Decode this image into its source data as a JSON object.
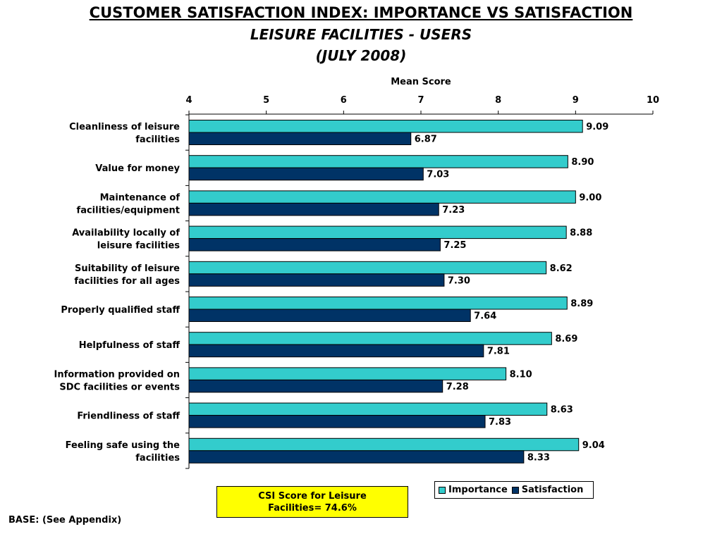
{
  "header": {
    "title": "CUSTOMER SATISFACTION INDEX: IMPORTANCE VS SATISFACTION",
    "subtitle": "LEISURE FACILITIES - USERS",
    "date": "(JULY 2008)"
  },
  "chart_data": {
    "type": "bar",
    "orientation": "horizontal",
    "xlabel": "Mean Score",
    "xlim": [
      4,
      10
    ],
    "xticks": [
      "4",
      "5",
      "6",
      "7",
      "8",
      "9",
      "10"
    ],
    "categories": [
      [
        "Cleanliness of leisure",
        "facilities"
      ],
      [
        "Value for money"
      ],
      [
        "Maintenance of",
        "facilities/equipment"
      ],
      [
        "Availability locally of",
        "leisure facilities"
      ],
      [
        "Suitability of leisure",
        "facilities for all ages"
      ],
      [
        "Properly qualified staff"
      ],
      [
        "Helpfulness of staff"
      ],
      [
        "Information provided on",
        "SDC facilities or events"
      ],
      [
        "Friendliness of staff"
      ],
      [
        "Feeling safe using the",
        "facilities"
      ]
    ],
    "series": [
      {
        "name": "Importance",
        "color": "#33cccc",
        "values": [
          9.09,
          8.9,
          9.0,
          8.88,
          8.62,
          8.89,
          8.69,
          8.1,
          8.63,
          9.04
        ],
        "labels": [
          "9.09",
          "8.90",
          "9.00",
          "8.88",
          "8.62",
          "8.89",
          "8.69",
          "8.10",
          "8.63",
          "9.04"
        ]
      },
      {
        "name": "Satisfaction",
        "color": "#003366",
        "values": [
          6.87,
          7.03,
          7.23,
          7.25,
          7.3,
          7.64,
          7.81,
          7.28,
          7.83,
          8.33
        ],
        "labels": [
          "6.87",
          "7.03",
          "7.23",
          "7.25",
          "7.30",
          "7.64",
          "7.81",
          "7.28",
          "7.83",
          "8.33"
        ]
      }
    ],
    "legend_position": "bottom-right",
    "grid": false
  },
  "csi_box": {
    "line1": "CSI Score for Leisure",
    "line2": "Facilities= 74.6%"
  },
  "legend": {
    "importance": "Importance",
    "satisfaction": "Satisfaction"
  },
  "footer": {
    "base": "BASE: (See Appendix)"
  }
}
